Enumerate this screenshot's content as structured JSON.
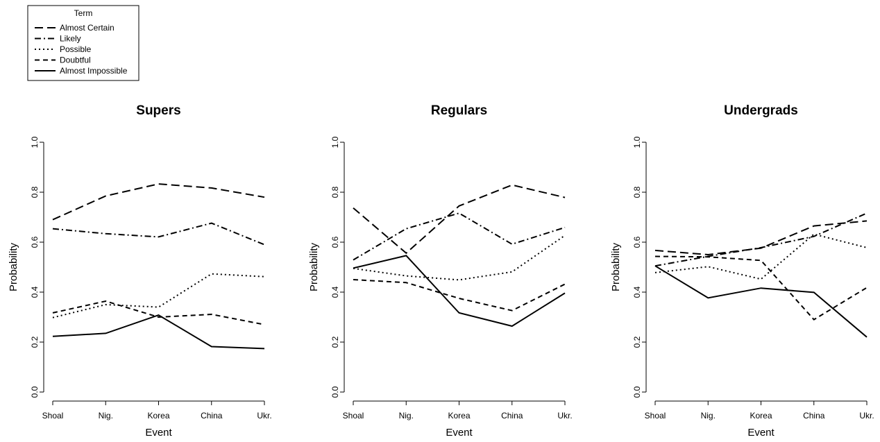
{
  "legend": {
    "title": "Term",
    "entries": [
      {
        "name": "Almost Certain",
        "dash": "12 6"
      },
      {
        "name": "Likely",
        "dash": "9 4 2 4"
      },
      {
        "name": "Possible",
        "dash": "2 4"
      },
      {
        "name": "Doubtful",
        "dash": "7 5"
      },
      {
        "name": "Almost Impossible",
        "dash": ""
      }
    ]
  },
  "chart_data": [
    {
      "type": "line",
      "title": "Supers",
      "xlabel": "Event",
      "ylabel": "Probability",
      "categories": [
        "Shoal",
        "Nig.",
        "Korea",
        "China",
        "Ukr."
      ],
      "ylim": [
        0,
        1
      ],
      "yticks": [
        "0.0",
        "0.2",
        "0.4",
        "0.6",
        "0.8",
        "1.0"
      ],
      "grid": false,
      "series": [
        {
          "name": "Almost Certain",
          "values": [
            0.69,
            0.785,
            0.833,
            0.817,
            0.78
          ]
        },
        {
          "name": "Likely",
          "values": [
            0.654,
            0.634,
            0.621,
            0.676,
            0.59
          ]
        },
        {
          "name": "Possible",
          "values": [
            0.298,
            0.35,
            0.34,
            0.473,
            0.462
          ]
        },
        {
          "name": "Doubtful",
          "values": [
            0.317,
            0.364,
            0.3,
            0.311,
            0.27
          ]
        },
        {
          "name": "Almost Impossible",
          "values": [
            0.223,
            0.235,
            0.308,
            0.182,
            0.174
          ]
        }
      ]
    },
    {
      "type": "line",
      "title": "Regulars",
      "xlabel": "Event",
      "ylabel": "Probability",
      "categories": [
        "Shoal",
        "Nig.",
        "Korea",
        "China",
        "Ukr."
      ],
      "ylim": [
        0,
        1
      ],
      "yticks": [
        "0.0",
        "0.2",
        "0.4",
        "0.6",
        "0.8",
        "1.0"
      ],
      "grid": false,
      "series": [
        {
          "name": "Almost Certain",
          "values": [
            0.737,
            0.556,
            0.745,
            0.829,
            0.779
          ]
        },
        {
          "name": "Likely",
          "values": [
            0.529,
            0.654,
            0.716,
            0.592,
            0.659
          ]
        },
        {
          "name": "Possible",
          "values": [
            0.495,
            0.465,
            0.449,
            0.481,
            0.627
          ]
        },
        {
          "name": "Doubtful",
          "values": [
            0.45,
            0.438,
            0.375,
            0.326,
            0.432
          ]
        },
        {
          "name": "Almost Impossible",
          "values": [
            0.496,
            0.546,
            0.317,
            0.264,
            0.396
          ]
        }
      ]
    },
    {
      "type": "line",
      "title": "Undergrads",
      "xlabel": "Event",
      "ylabel": "Probability",
      "categories": [
        "Shoal",
        "Nig.",
        "Korea",
        "China",
        "Ukr."
      ],
      "ylim": [
        0,
        1
      ],
      "yticks": [
        "0.0",
        "0.2",
        "0.4",
        "0.6",
        "0.8",
        "1.0"
      ],
      "grid": false,
      "series": [
        {
          "name": "Almost Certain",
          "values": [
            0.567,
            0.55,
            0.576,
            0.665,
            0.685
          ]
        },
        {
          "name": "Likely",
          "values": [
            0.505,
            0.543,
            0.578,
            0.623,
            0.716
          ]
        },
        {
          "name": "Possible",
          "values": [
            0.478,
            0.502,
            0.452,
            0.632,
            0.578
          ]
        },
        {
          "name": "Doubtful",
          "values": [
            0.543,
            0.541,
            0.527,
            0.29,
            0.418
          ]
        },
        {
          "name": "Almost Impossible",
          "values": [
            0.505,
            0.377,
            0.416,
            0.399,
            0.22
          ]
        }
      ]
    }
  ]
}
